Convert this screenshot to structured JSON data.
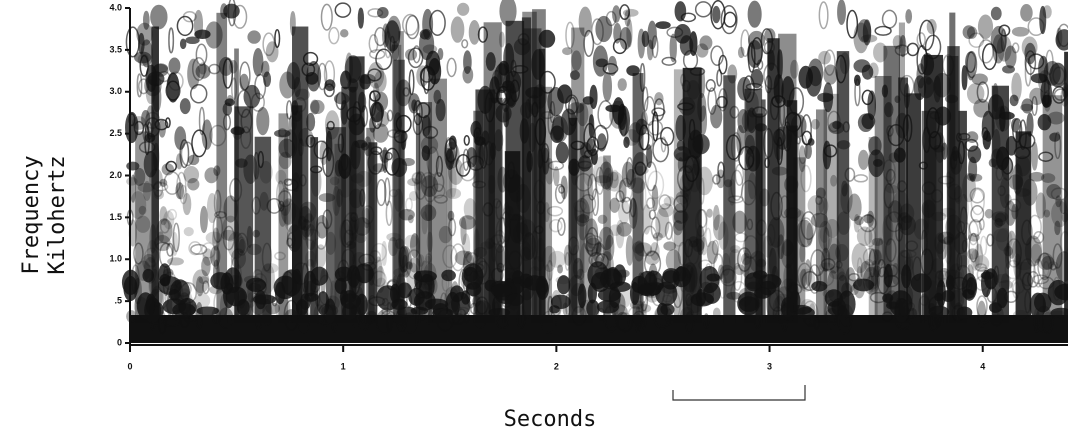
{
  "chart_data": {
    "type": "spectrogram",
    "x_label": "Seconds",
    "y_label": [
      "Frequency",
      "Kilohertz"
    ],
    "xlim": [
      0,
      4.4
    ],
    "ylim": [
      0,
      4
    ],
    "xticks": [
      0,
      1,
      2,
      3,
      4
    ],
    "yticks": [
      0,
      {
        "value": 0.5,
        "label": ".5"
      },
      {
        "value": 1,
        "label": "1.0"
      },
      {
        "value": 1.5,
        "label": "1.5"
      },
      {
        "value": 2,
        "label": "2.0"
      },
      {
        "value": 2.5,
        "label": "2.5"
      },
      {
        "value": 3,
        "label": "3.0"
      },
      {
        "value": 3.5,
        "label": "3.5"
      },
      {
        "value": 4,
        "label": "4.0"
      }
    ],
    "color": "#111111"
  }
}
